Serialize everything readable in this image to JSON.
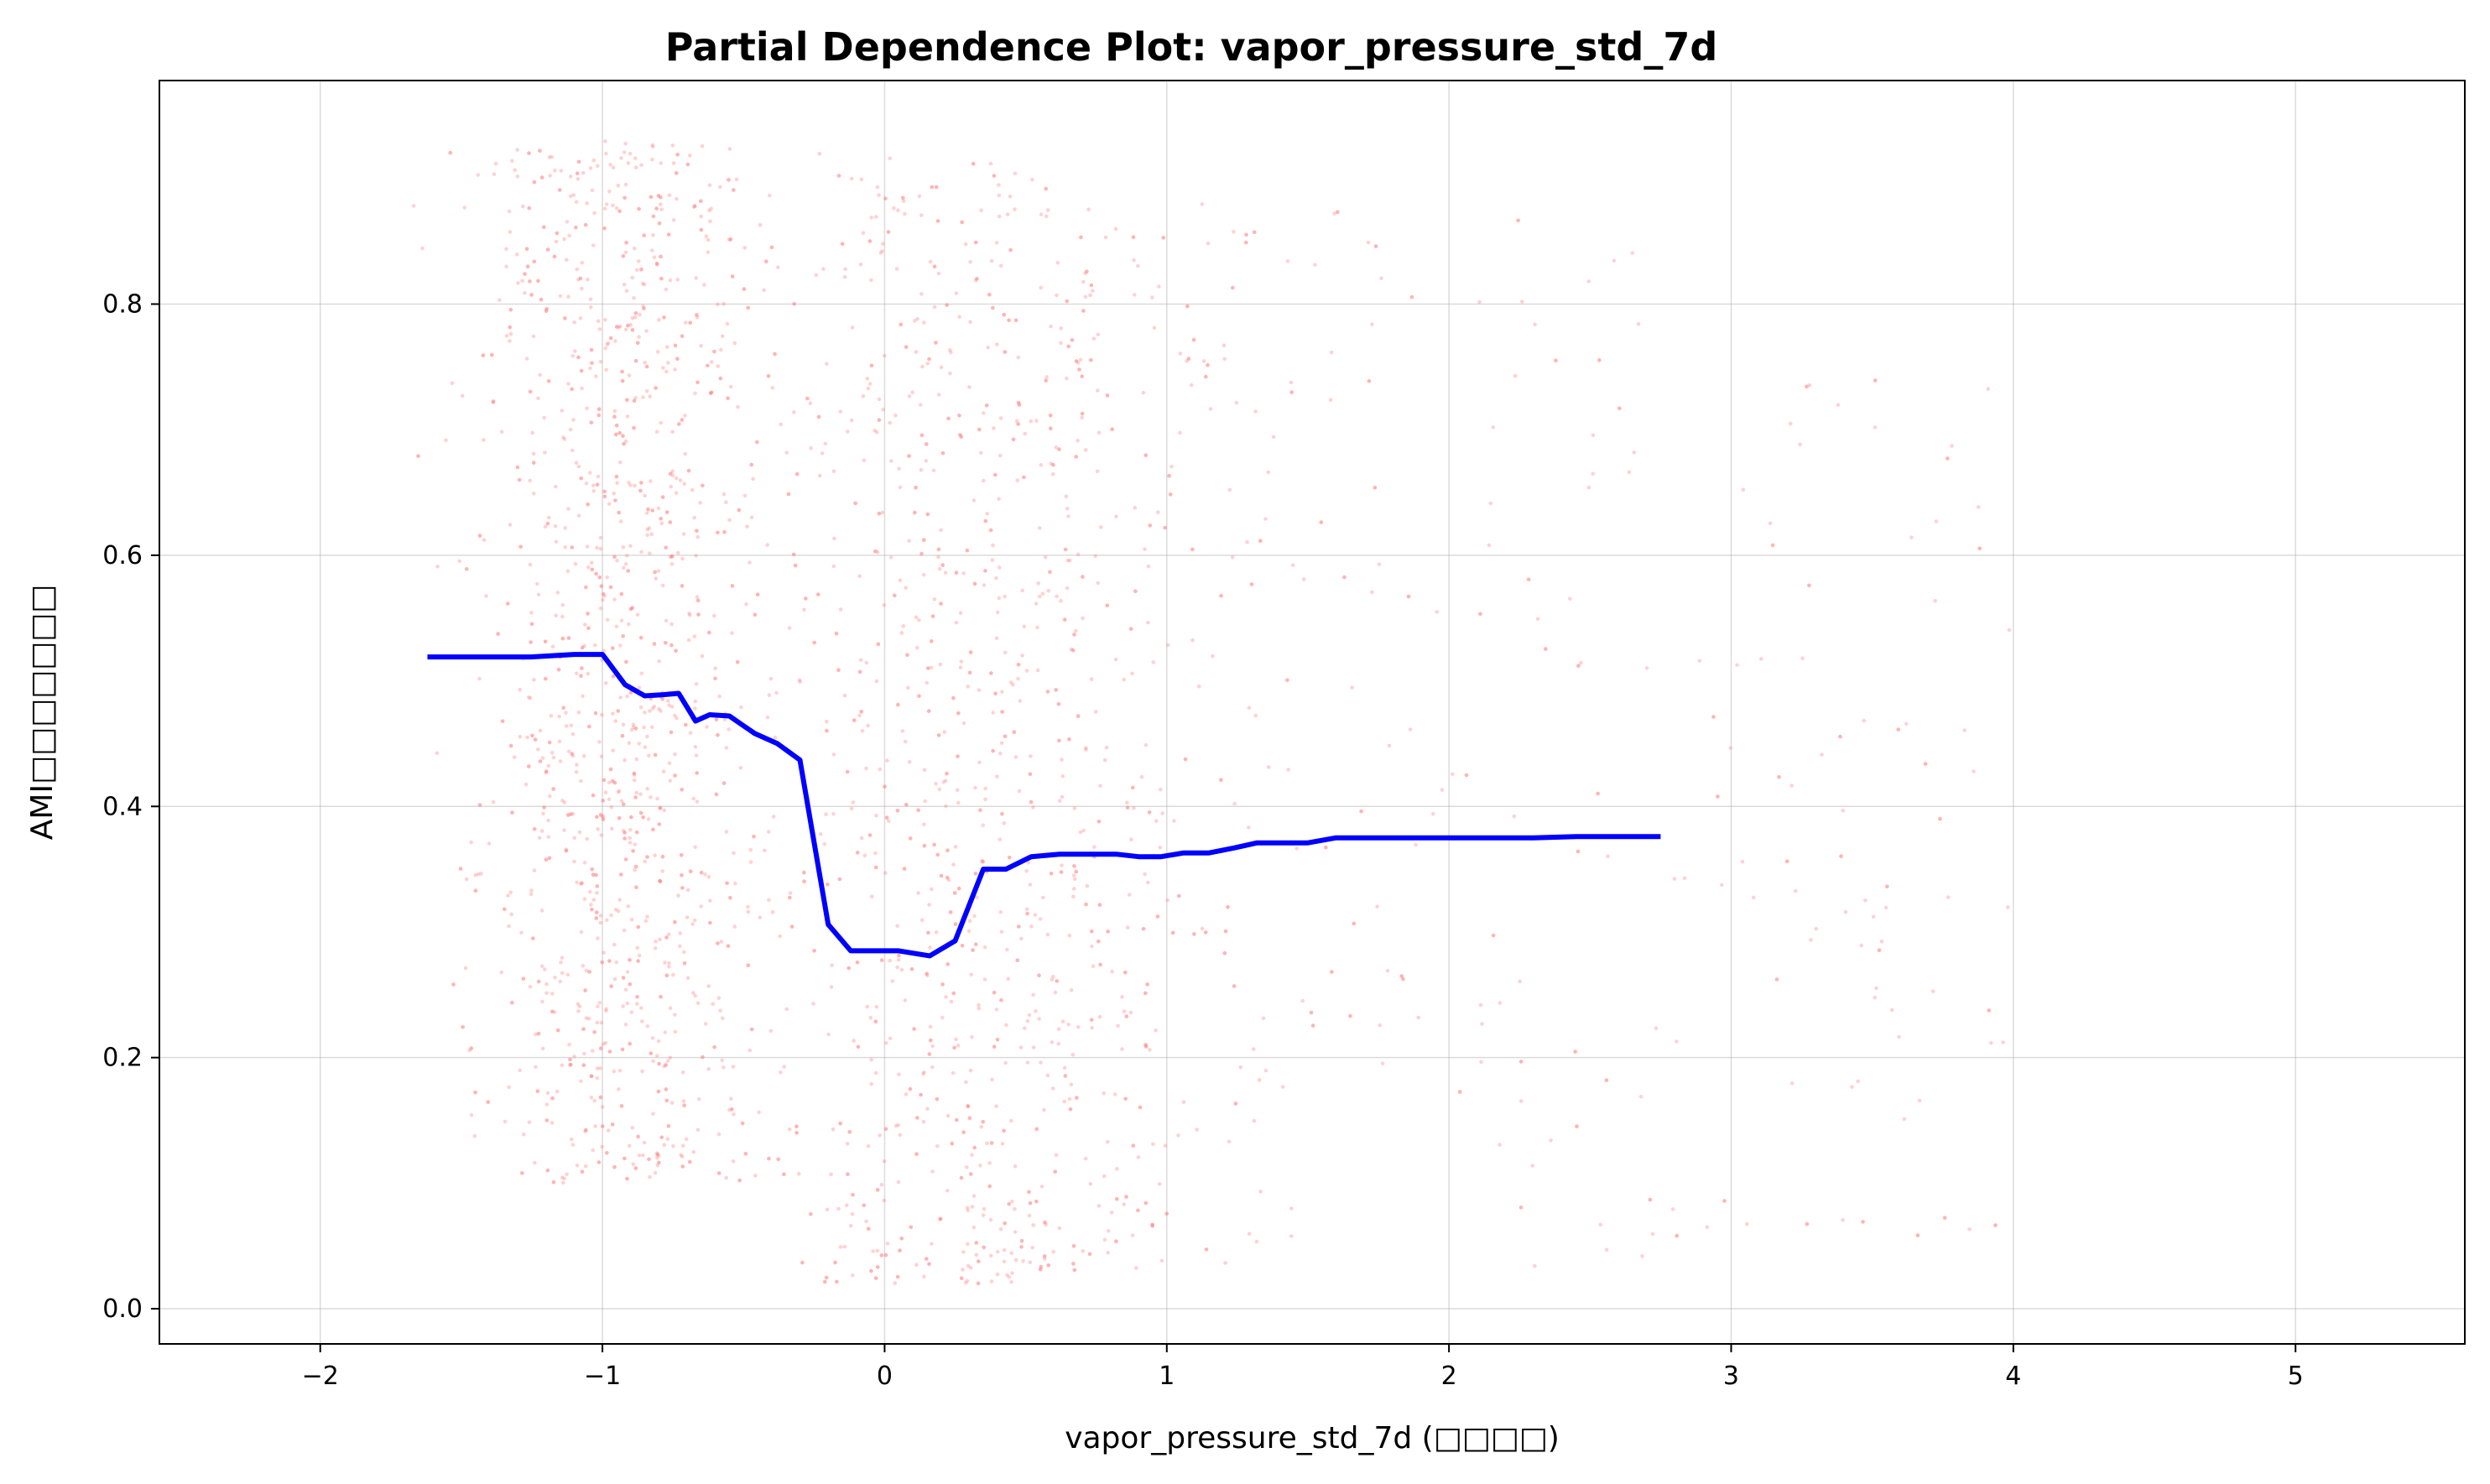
{
  "chart_data": {
    "type": "line",
    "title": "Partial Dependence Plot: vapor_pressure_std_7d",
    "xlabel": "vapor_pressure_std_7d (□□□□)",
    "ylabel": "AMI□□□□□□□",
    "xlim": [
      -2.57,
      5.6
    ],
    "ylim": [
      -0.028,
      0.978
    ],
    "grid": true,
    "x_ticks": [
      -2,
      -1,
      0,
      1,
      2,
      3,
      4,
      5
    ],
    "x_tick_labels": [
      "−2",
      "−1",
      "0",
      "1",
      "2",
      "3",
      "4",
      "5"
    ],
    "y_ticks": [
      0.0,
      0.2,
      0.4,
      0.6,
      0.8
    ],
    "y_tick_labels": [
      "0.0",
      "0.2",
      "0.4",
      "0.6",
      "0.8"
    ],
    "series": [
      {
        "color": "#0000ff",
        "x": [
          -1.62,
          -1.5,
          -1.25,
          -1.1,
          -1.0,
          -0.92,
          -0.85,
          -0.78,
          -0.73,
          -0.67,
          -0.62,
          -0.55,
          -0.46,
          -0.38,
          -0.3,
          -0.2,
          -0.12,
          -0.05,
          0.05,
          0.16,
          0.25,
          0.35,
          0.43,
          0.52,
          0.62,
          0.72,
          0.82,
          0.9,
          0.98,
          1.06,
          1.15,
          1.24,
          1.32,
          1.42,
          1.5,
          1.6,
          1.7,
          1.8,
          1.9,
          2.0,
          2.15,
          2.3,
          2.45,
          2.6,
          2.75
        ],
        "y": [
          0.519,
          0.519,
          0.519,
          0.521,
          0.521,
          0.497,
          0.488,
          0.489,
          0.49,
          0.468,
          0.473,
          0.472,
          0.458,
          0.45,
          0.437,
          0.306,
          0.285,
          0.285,
          0.285,
          0.281,
          0.293,
          0.35,
          0.35,
          0.36,
          0.362,
          0.362,
          0.362,
          0.36,
          0.36,
          0.363,
          0.363,
          0.367,
          0.371,
          0.371,
          0.371,
          0.375,
          0.375,
          0.375,
          0.375,
          0.375,
          0.375,
          0.375,
          0.376,
          0.376,
          0.376
        ]
      }
    ],
    "scatter": {
      "color": "#ff7f7f",
      "note_count": 3000
    }
  }
}
